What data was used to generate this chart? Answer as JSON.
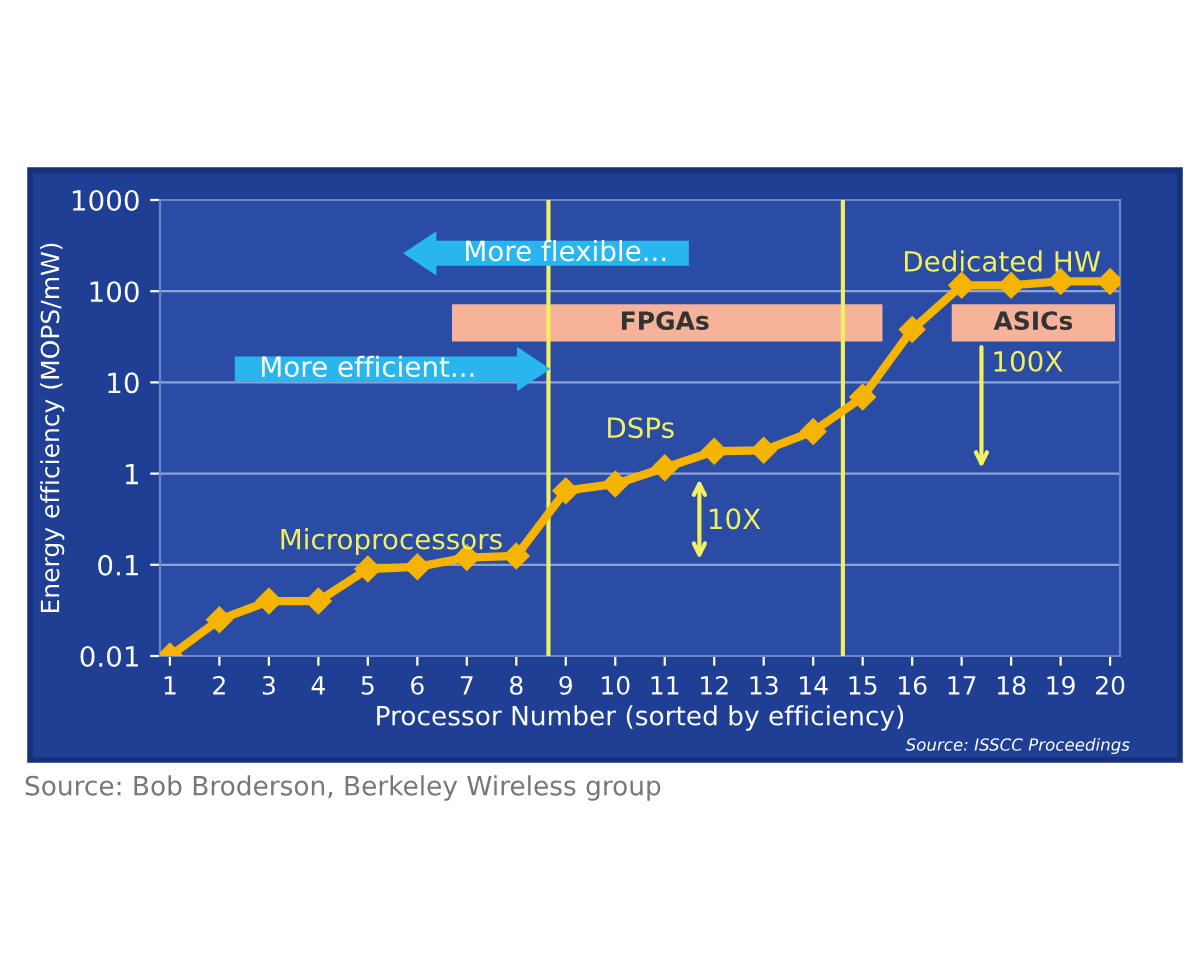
{
  "chart_data": {
    "type": "line",
    "xlabel": "Processor Number (sorted by efficiency)",
    "ylabel": "Energy efficiency (MOPS/mW)",
    "x": [
      1,
      2,
      3,
      4,
      5,
      6,
      7,
      8,
      9,
      10,
      11,
      12,
      13,
      14,
      15,
      16,
      17,
      18,
      19,
      20
    ],
    "series": [
      {
        "color": "#f5b400",
        "values": [
          0.01,
          0.025,
          0.04,
          0.04,
          0.09,
          0.095,
          0.12,
          0.125,
          0.65,
          0.77,
          1.16,
          1.76,
          1.8,
          2.9,
          6.9,
          38,
          116,
          116,
          128,
          128
        ]
      }
    ],
    "log": "y",
    "xlim": [
      0.8,
      20.2
    ],
    "ylim": [
      0.01,
      1000
    ],
    "xticks": [
      1,
      2,
      3,
      4,
      5,
      6,
      7,
      8,
      9,
      10,
      11,
      12,
      13,
      14,
      15,
      16,
      17,
      18,
      19,
      20
    ],
    "yticks": [
      0.01,
      0.1,
      1,
      10,
      100,
      1000
    ],
    "grid": "y",
    "marker": "diamond",
    "line_style": "solid",
    "ref_lines": [
      {
        "axis": "x",
        "value": 8.65,
        "color": "#f0f060"
      },
      {
        "axis": "x",
        "value": 14.6,
        "color": "#f0f060"
      }
    ],
    "annotations": [
      "Microprocessors",
      "DSPs",
      "Dedicated HW",
      "FPGAs",
      "ASICs",
      "10X",
      "100X",
      "More flexible...",
      "More efficient...",
      "Source: ISSCC Proceedings",
      "Source: Bob Broderson, Berkeley Wireless group"
    ]
  }
}
